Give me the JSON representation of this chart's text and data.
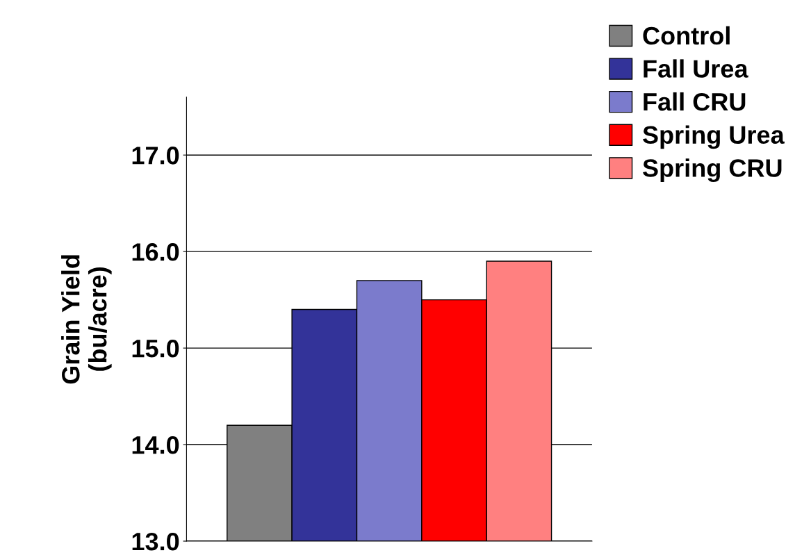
{
  "chart_data": {
    "type": "bar",
    "ylabel": "Grain Yield\n(bu/acre)",
    "categories": [
      null
    ],
    "series": [
      {
        "name": "Control",
        "color": "#808080",
        "values": [
          14.2
        ]
      },
      {
        "name": "Fall Urea",
        "color": "#333399",
        "values": [
          15.4
        ]
      },
      {
        "name": "Fall CRU",
        "color": "#7b7bcc",
        "values": [
          15.7
        ]
      },
      {
        "name": "Spring Urea",
        "color": "#ff0000",
        "values": [
          15.5
        ]
      },
      {
        "name": "Spring CRU",
        "color": "#ff8080",
        "values": [
          15.9
        ]
      }
    ],
    "ylim": [
      13,
      17.6
    ],
    "yticks": [
      {
        "value": 13,
        "label": "13.0"
      },
      {
        "value": 14,
        "label": "14.0"
      },
      {
        "value": 15,
        "label": "15.0"
      },
      {
        "value": 16,
        "label": "16.0"
      },
      {
        "value": 17,
        "label": "17.0"
      }
    ],
    "grid": "y",
    "legend": "top right"
  }
}
